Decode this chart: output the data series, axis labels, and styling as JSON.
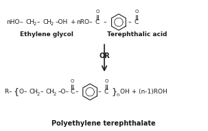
{
  "bg_color": "#ffffff",
  "text_color": "#1a1a1a",
  "fig_width": 3.03,
  "fig_height": 1.92,
  "dpi": 100,
  "ethylene_label": "Ethylene glycol",
  "tereph_label": "Terephthalic acid",
  "or_label": "OR",
  "bottom_label": "Polyethylene terephthalate",
  "fs": 6.5,
  "fss": 4.8,
  "lw": 0.8
}
